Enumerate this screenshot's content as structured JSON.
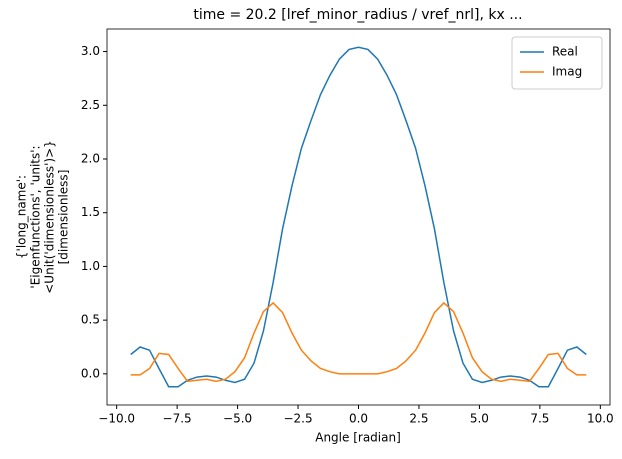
{
  "chart_data": {
    "type": "line",
    "title": "time = 20.2 [lref_minor_radius / vref_nrl], kx ...",
    "xlabel": "Angle [radian]",
    "ylabel": [
      "{'long_name':",
      "'Eigenfunctions', 'units':",
      "<Unit('dimensionless')>}",
      "[dimensionless]"
    ],
    "x": [
      -9.42,
      -9.03,
      -8.64,
      -8.25,
      -7.85,
      -7.46,
      -7.07,
      -6.68,
      -6.28,
      -5.89,
      -5.5,
      -5.11,
      -4.71,
      -4.32,
      -3.93,
      -3.53,
      -3.14,
      -2.75,
      -2.36,
      -1.96,
      -1.57,
      -1.18,
      -0.79,
      -0.39,
      0,
      0.39,
      0.79,
      1.18,
      1.57,
      1.96,
      2.36,
      2.75,
      3.14,
      3.53,
      3.93,
      4.32,
      4.71,
      5.11,
      5.5,
      5.89,
      6.28,
      6.68,
      7.07,
      7.46,
      7.85,
      8.25,
      8.64,
      9.03,
      9.42
    ],
    "series": [
      {
        "name": "Real",
        "color": "#1f77b4",
        "values": [
          0.18,
          0.25,
          0.22,
          0.05,
          -0.12,
          -0.12,
          -0.06,
          -0.03,
          -0.02,
          -0.03,
          -0.06,
          -0.08,
          -0.05,
          0.1,
          0.4,
          0.85,
          1.35,
          1.75,
          2.1,
          2.36,
          2.6,
          2.78,
          2.93,
          3.02,
          3.04,
          3.02,
          2.93,
          2.78,
          2.6,
          2.36,
          2.1,
          1.75,
          1.35,
          0.85,
          0.4,
          0.1,
          -0.05,
          -0.08,
          -0.06,
          -0.03,
          -0.02,
          -0.03,
          -0.06,
          -0.12,
          -0.12,
          0.05,
          0.22,
          0.25,
          0.18
        ]
      },
      {
        "name": "Imag",
        "color": "#ff7f0e",
        "values": [
          -0.01,
          -0.01,
          0.05,
          0.19,
          0.18,
          0.05,
          -0.07,
          -0.06,
          -0.05,
          -0.07,
          -0.05,
          0.02,
          0.15,
          0.38,
          0.58,
          0.66,
          0.57,
          0.38,
          0.22,
          0.12,
          0.05,
          0.02,
          0,
          0,
          0,
          0,
          0,
          0.02,
          0.05,
          0.12,
          0.22,
          0.38,
          0.57,
          0.66,
          0.58,
          0.38,
          0.15,
          0.02,
          -0.05,
          -0.07,
          -0.05,
          -0.06,
          -0.07,
          0.05,
          0.18,
          0.19,
          0.05,
          -0.01,
          -0.01
        ]
      }
    ],
    "xlim": [
      -10.4,
      10.4
    ],
    "ylim": [
      -0.29,
      3.21
    ],
    "xticks": [
      {
        "value": -10,
        "label": "−10.0"
      },
      {
        "value": -7.5,
        "label": "−7.5"
      },
      {
        "value": -5,
        "label": "−5.0"
      },
      {
        "value": -2.5,
        "label": "−2.5"
      },
      {
        "value": 0,
        "label": "0.0"
      },
      {
        "value": 2.5,
        "label": "2.5"
      },
      {
        "value": 5,
        "label": "5.0"
      },
      {
        "value": 7.5,
        "label": "7.5"
      },
      {
        "value": 10,
        "label": "10.0"
      }
    ],
    "yticks": [
      {
        "value": 0,
        "label": "0.0"
      },
      {
        "value": 0.5,
        "label": "0.5"
      },
      {
        "value": 1,
        "label": "1.0"
      },
      {
        "value": 1.5,
        "label": "1.5"
      },
      {
        "value": 2,
        "label": "2.0"
      },
      {
        "value": 2.5,
        "label": "2.5"
      },
      {
        "value": 3,
        "label": "3.0"
      }
    ],
    "legend": "upper right",
    "grid": false
  }
}
